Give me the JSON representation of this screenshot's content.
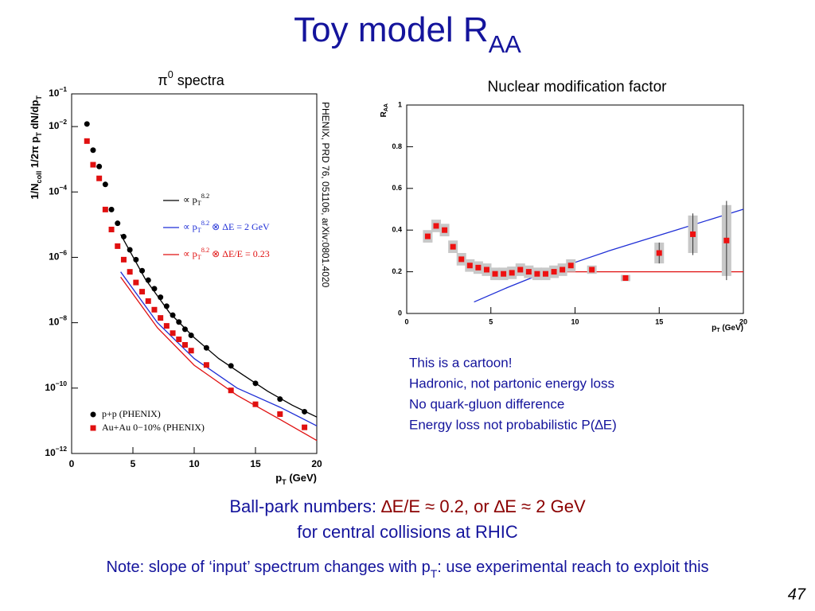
{
  "title": [
    {
      "text": "Toy model R"
    },
    {
      "text": "AA",
      "sub": true
    }
  ],
  "chart_data": [
    {
      "type": "scatter",
      "title": [
        {
          "text": "π"
        },
        {
          "text": "0",
          "sup": true
        },
        {
          "text": " spectra"
        }
      ],
      "x_label": [
        {
          "text": "p"
        },
        {
          "text": "T",
          "sub": true
        },
        {
          "text": " (GeV)"
        }
      ],
      "y_label": [
        {
          "text": "1/N"
        },
        {
          "text": "coll",
          "sub": true
        },
        {
          "text": " 1/2π p"
        },
        {
          "text": "T",
          "sub": true
        },
        {
          "text": " dN/dp"
        },
        {
          "text": "T",
          "sub": true
        }
      ],
      "annotation": "PHENIX, PRD 76, 051106, arXiv:0801.4020",
      "log_y": true,
      "xlim": [
        0,
        20
      ],
      "ylim": [
        1e-12,
        0.1
      ],
      "xticks": [
        0,
        5,
        10,
        15,
        20
      ],
      "yticks": [
        {
          "value": 1e-12,
          "label": [
            {
              "text": "10"
            },
            {
              "text": "−12",
              "sup": true
            }
          ]
        },
        {
          "value": 1e-10,
          "label": [
            {
              "text": "10"
            },
            {
              "text": "−10",
              "sup": true
            }
          ]
        },
        {
          "value": 1e-08,
          "label": [
            {
              "text": "10"
            },
            {
              "text": "−8",
              "sup": true
            }
          ]
        },
        {
          "value": 1e-06,
          "label": [
            {
              "text": "10"
            },
            {
              "text": "−6",
              "sup": true
            }
          ]
        },
        {
          "value": 0.0001,
          "label": [
            {
              "text": "10"
            },
            {
              "text": "−4",
              "sup": true
            }
          ]
        },
        {
          "value": 0.01,
          "label": [
            {
              "text": "10"
            },
            {
              "text": "−2",
              "sup": true
            }
          ]
        },
        {
          "value": 0.1,
          "label": [
            {
              "text": "10"
            },
            {
              "text": "−1",
              "sup": true
            }
          ]
        }
      ],
      "series": [
        {
          "name": [
            {
              "text": "∝ p"
            },
            {
              "text": "T",
              "sub": true
            },
            {
              "text": "8.2",
              "sup": true
            }
          ],
          "color": "#000000",
          "style": "line",
          "x": [
            4,
            6,
            8,
            10,
            12,
            14,
            16,
            18,
            20
          ],
          "values": [
            5e-06,
            2.2e-07,
            2e-08,
            3.5e-09,
            8e-10,
            2.5e-10,
            8e-11,
            3e-11,
            1.3e-11
          ]
        },
        {
          "name": [
            {
              "text": "∝ p"
            },
            {
              "text": "T",
              "sub": true
            },
            {
              "text": "8.2",
              "sup": true
            },
            {
              "text": " ⊗ ΔE = 2 GeV"
            }
          ],
          "color": "#1f2fd6",
          "style": "line",
          "x": [
            4,
            7,
            10,
            13.5,
            17,
            20
          ],
          "values": [
            3.6e-07,
            1e-08,
            8e-10,
            1e-10,
            2.6e-11,
            7e-12
          ]
        },
        {
          "name": [
            {
              "text": "∝ p"
            },
            {
              "text": "T",
              "sub": true
            },
            {
              "text": "8.2",
              "sup": true
            },
            {
              "text": " ⊗ ΔE/E = 0.23"
            }
          ],
          "color": "#e01010",
          "style": "line",
          "x": [
            4,
            7,
            10,
            13.5,
            17,
            20
          ],
          "values": [
            2.5e-07,
            7e-09,
            5e-10,
            6e-11,
            1.1e-11,
            2.5e-12
          ]
        },
        {
          "name": "p+p (PHENIX)",
          "color": "#000000",
          "style": "points",
          "marker": "circle",
          "x": [
            1.25,
            1.75,
            2.25,
            2.75,
            3.25,
            3.75,
            4.25,
            4.75,
            5.25,
            5.75,
            6.25,
            6.75,
            7.25,
            7.75,
            8.25,
            8.75,
            9.25,
            9.75,
            11,
            13,
            15,
            17,
            19
          ],
          "values": [
            0.012,
            0.0019,
            0.0006,
            0.00017,
            2.9e-05,
            1.1e-05,
            4.3e-06,
            1.7e-06,
            8.5e-07,
            3.9e-07,
            2e-07,
            1.1e-07,
            6e-08,
            3.2e-08,
            1.7e-08,
            1.05e-08,
            6.3e-09,
            4.1e-09,
            1.7e-09,
            4.8e-10,
            1.4e-10,
            4.6e-11,
            1.9e-11
          ]
        },
        {
          "name": "Au+Au 0−10% (PHENIX)",
          "color": "#e01010",
          "style": "points",
          "marker": "square",
          "x": [
            1.25,
            1.75,
            2.25,
            2.75,
            3.25,
            3.75,
            4.25,
            4.75,
            5.25,
            5.75,
            6.25,
            6.75,
            7.25,
            7.75,
            8.25,
            8.75,
            9.25,
            9.75,
            11,
            13,
            15,
            17,
            19
          ],
          "values": [
            0.0036,
            0.00068,
            0.00026,
            2.9e-05,
            7.1e-06,
            2.2e-06,
            8.5e-07,
            3.6e-07,
            1.7e-07,
            8.9e-08,
            4.6e-08,
            2.5e-08,
            1.4e-08,
            8e-09,
            4.8e-09,
            3.1e-09,
            2.1e-09,
            1.4e-09,
            5.1e-10,
            8.5e-11,
            3.2e-11,
            1.6e-11,
            6.3e-12
          ]
        }
      ]
    },
    {
      "type": "scatter",
      "title": "Nuclear modification factor",
      "x_label": [
        {
          "text": "p"
        },
        {
          "text": "T",
          "sub": true
        },
        {
          "text": " (GeV)"
        }
      ],
      "y_label": [
        {
          "text": "R"
        },
        {
          "text": "AA",
          "sub": true
        }
      ],
      "log_y": false,
      "xlim": [
        0,
        20
      ],
      "ylim": [
        0,
        1
      ],
      "xticks": [
        0,
        5,
        10,
        15,
        20
      ],
      "yticks": [
        0,
        0.2,
        0.4,
        0.6,
        0.8,
        1
      ],
      "series": [
        {
          "color": "#e01010",
          "style": "line",
          "x": [
            7.5,
            20
          ],
          "values": [
            0.2,
            0.2
          ]
        },
        {
          "color": "#1f2fd6",
          "style": "line",
          "x": [
            4,
            6,
            8,
            10,
            12,
            14,
            16,
            18,
            20
          ],
          "values": [
            0.055,
            0.125,
            0.19,
            0.245,
            0.3,
            0.35,
            0.4,
            0.45,
            0.5
          ]
        },
        {
          "color": "#ee1111",
          "style": "points",
          "marker": "square",
          "error_color": "#c8c8c8",
          "x": [
            1.25,
            1.75,
            2.25,
            2.75,
            3.25,
            3.75,
            4.25,
            4.75,
            5.25,
            5.75,
            6.25,
            6.75,
            7.25,
            7.75,
            8.25,
            8.75,
            9.25,
            9.75,
            11,
            13,
            15,
            17,
            19
          ],
          "values": [
            0.37,
            0.42,
            0.4,
            0.32,
            0.26,
            0.23,
            0.22,
            0.21,
            0.19,
            0.19,
            0.195,
            0.21,
            0.2,
            0.19,
            0.19,
            0.2,
            0.21,
            0.23,
            0.21,
            0.17,
            0.29,
            0.38,
            0.35
          ],
          "sys_errors": [
            0.03,
            0.03,
            0.03,
            0.03,
            0.03,
            0.03,
            0.03,
            0.03,
            0.03,
            0.03,
            0.03,
            0.03,
            0.03,
            0.03,
            0.03,
            0.03,
            0.03,
            0.03,
            0.02,
            0.015,
            0.05,
            0.09,
            0.17
          ],
          "stat_errors": [
            null,
            null,
            null,
            null,
            null,
            null,
            null,
            null,
            null,
            null,
            null,
            null,
            null,
            null,
            null,
            null,
            null,
            null,
            null,
            null,
            0.05,
            0.1,
            0.19
          ]
        }
      ]
    }
  ],
  "notes": [
    "This is a cartoon!",
    "Hadronic, not partonic energy loss",
    "No quark-gluon difference",
    "Energy loss not probabilistic P(∆E)"
  ],
  "ballpark": {
    "lead": "Ball-park numbers: ",
    "highlight": "∆E/E ≈ 0.2, or ∆E ≈ 2 GeV",
    "line2": "for central collisions at RHIC"
  },
  "footnote": [
    {
      "text": "Note: slope of ‘input’ spectrum changes with p"
    },
    {
      "text": "T",
      "sub": true
    },
    {
      "text": ": use experimental reach to exploit this"
    }
  ],
  "page_number": "47"
}
